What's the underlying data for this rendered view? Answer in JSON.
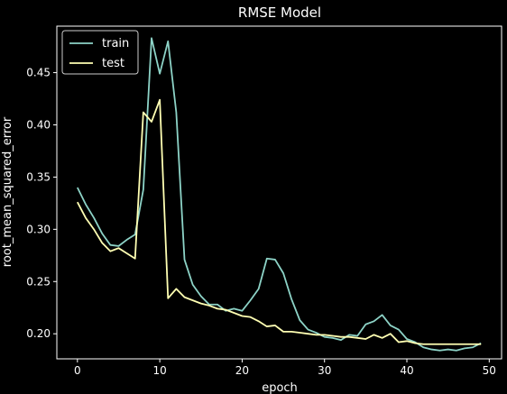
{
  "chart_data": {
    "type": "line",
    "title": "RMSE Model",
    "xlabel": "epoch",
    "ylabel": "root_mean_squared_error",
    "xlim": [
      -2.5,
      51.5
    ],
    "ylim": [
      0.176,
      0.4945
    ],
    "xticks": [
      0,
      10,
      20,
      30,
      40,
      50
    ],
    "xtick_labels": [
      "0",
      "10",
      "20",
      "30",
      "40",
      "50"
    ],
    "yticks": [
      0.2,
      0.25,
      0.3,
      0.35,
      0.4,
      0.45
    ],
    "ytick_labels": [
      "0.20",
      "0.25",
      "0.30",
      "0.35",
      "0.40",
      "0.45"
    ],
    "grid": false,
    "legend": "upper left",
    "background": "#000000",
    "axis_color": "#ffffff",
    "series": [
      {
        "name": "train",
        "color": "#8dd3c7",
        "x": [
          0,
          1,
          2,
          3,
          4,
          5,
          6,
          7,
          8,
          9,
          10,
          11,
          12,
          13,
          14,
          15,
          16,
          17,
          18,
          19,
          20,
          21,
          22,
          23,
          24,
          25,
          26,
          27,
          28,
          29,
          30,
          31,
          32,
          33,
          34,
          35,
          36,
          37,
          38,
          39,
          40,
          41,
          42,
          43,
          44,
          45,
          46,
          47,
          48,
          49
        ],
        "values": [
          0.34,
          0.324,
          0.311,
          0.296,
          0.285,
          0.284,
          0.29,
          0.295,
          0.338,
          0.483,
          0.449,
          0.48,
          0.412,
          0.271,
          0.247,
          0.236,
          0.228,
          0.228,
          0.222,
          0.224,
          0.222,
          0.232,
          0.243,
          0.272,
          0.271,
          0.258,
          0.233,
          0.213,
          0.204,
          0.201,
          0.197,
          0.196,
          0.194,
          0.199,
          0.198,
          0.209,
          0.212,
          0.218,
          0.208,
          0.204,
          0.195,
          0.192,
          0.187,
          0.185,
          0.184,
          0.185,
          0.184,
          0.186,
          0.187,
          0.191
        ]
      },
      {
        "name": "test",
        "color": "#ffffb3",
        "x": [
          0,
          1,
          2,
          3,
          4,
          5,
          6,
          7,
          8,
          9,
          10,
          11,
          12,
          13,
          14,
          15,
          16,
          17,
          18,
          19,
          20,
          21,
          22,
          23,
          24,
          25,
          26,
          27,
          28,
          29,
          30,
          31,
          32,
          33,
          34,
          35,
          36,
          37,
          38,
          39,
          40,
          41,
          42,
          43,
          44,
          45,
          46,
          47,
          48,
          49
        ],
        "values": [
          0.326,
          0.311,
          0.3,
          0.287,
          0.279,
          0.282,
          0.277,
          0.272,
          0.412,
          0.403,
          0.424,
          0.234,
          0.243,
          0.235,
          0.232,
          0.229,
          0.227,
          0.224,
          0.223,
          0.22,
          0.217,
          0.216,
          0.212,
          0.207,
          0.208,
          0.202,
          0.202,
          0.201,
          0.2,
          0.199,
          0.199,
          0.198,
          0.197,
          0.197,
          0.196,
          0.195,
          0.199,
          0.196,
          0.2,
          0.192,
          0.193,
          0.191,
          0.19,
          0.19,
          0.19,
          0.19,
          0.19,
          0.19,
          0.19,
          0.19
        ]
      }
    ]
  }
}
